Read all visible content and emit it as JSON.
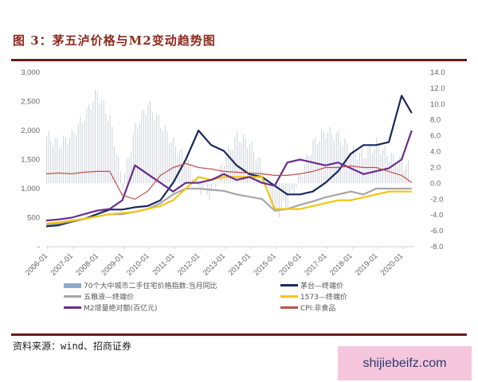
{
  "title": "图 3：茅五泸价格与M2变动趋势图",
  "source": "资料来源：wind、招商证券",
  "watermark": "shijiebeifz.com",
  "legend": [
    {
      "label": "70个大中城市二手住宅价格指数:当月同比",
      "color": "#8fa8cf",
      "kind": "bar"
    },
    {
      "label": "茅台—终端价",
      "color": "#1a2a5e",
      "kind": "line"
    },
    {
      "label": "五粮液—终端价",
      "color": "#a6a6a6",
      "kind": "line"
    },
    {
      "label": "1573—终端价",
      "color": "#f2c511",
      "kind": "line"
    },
    {
      "label": "M2增量绝对额(百亿元)",
      "color": "#6a2c91",
      "kind": "line"
    },
    {
      "label": "CPI:非食品",
      "color": "#c0504d",
      "kind": "line"
    }
  ],
  "chart_data": {
    "type": "line",
    "title": "茅五泸价格与M2变动趋势图",
    "xlabel": "",
    "ylabel_left": "",
    "ylabel_right": "",
    "x_ticks": [
      "2006-01",
      "2007-01",
      "2008-01",
      "2009-01",
      "2010-01",
      "2011-01",
      "2012-01",
      "2013-01",
      "2014-01",
      "2015-01",
      "2016-01",
      "2017-01",
      "2018-01",
      "2019-01",
      "2020-01"
    ],
    "y_left_ticks": [
      "-",
      "500",
      "1,000",
      "1,500",
      "2,000",
      "2,500",
      "3,000"
    ],
    "y_left_range": [
      0,
      3000
    ],
    "y_right_ticks": [
      "-8.0",
      "-6.0",
      "-4.0",
      "-2.0",
      "0.0",
      "2.0",
      "4.0",
      "6.0",
      "8.0",
      "10.0",
      "12.0",
      "14.0"
    ],
    "y_right_range": [
      -8,
      14
    ],
    "legend_position": "bottom",
    "grid": false,
    "x": [
      2006.0,
      2006.5,
      2007.0,
      2007.5,
      2008.0,
      2008.5,
      2009.0,
      2009.5,
      2010.0,
      2010.5,
      2011.0,
      2011.5,
      2012.0,
      2012.5,
      2013.0,
      2013.5,
      2014.0,
      2014.5,
      2015.0,
      2015.5,
      2016.0,
      2016.5,
      2017.0,
      2017.5,
      2018.0,
      2018.5,
      2019.0,
      2019.5,
      2020.0,
      2020.4
    ],
    "series": [
      {
        "name": "茅台—终端价",
        "axis": "left",
        "values": [
          350,
          370,
          430,
          480,
          560,
          640,
          640,
          680,
          700,
          800,
          1100,
          1500,
          2000,
          1750,
          1650,
          1400,
          1250,
          1200,
          1050,
          900,
          900,
          950,
          1100,
          1300,
          1600,
          1750,
          1750,
          1800,
          2600,
          2300
        ]
      },
      {
        "name": "五粮液—终端价",
        "axis": "left",
        "values": [
          380,
          400,
          440,
          480,
          520,
          560,
          560,
          600,
          650,
          750,
          900,
          1000,
          1000,
          980,
          960,
          900,
          860,
          820,
          620,
          650,
          720,
          780,
          850,
          900,
          950,
          900,
          1000,
          1000,
          1000,
          1000
        ]
      },
      {
        "name": "1573—终端价",
        "axis": "left",
        "values": [
          400,
          420,
          450,
          480,
          520,
          560,
          580,
          600,
          650,
          700,
          800,
          1000,
          1200,
          1150,
          1200,
          1200,
          1200,
          1200,
          650,
          650,
          650,
          700,
          750,
          800,
          800,
          850,
          900,
          950,
          950,
          950
        ]
      },
      {
        "name": "M2增量绝对额(百亿元)",
        "axis": "left",
        "values": [
          450,
          470,
          500,
          560,
          620,
          650,
          800,
          1400,
          1250,
          1100,
          950,
          1100,
          1100,
          1150,
          1250,
          1150,
          1200,
          1100,
          1050,
          1450,
          1500,
          1450,
          1400,
          1450,
          1350,
          1250,
          1300,
          1350,
          1500,
          2000
        ]
      },
      {
        "name": "CPI:非食品",
        "axis": "right",
        "values": [
          1.2,
          1.3,
          1.2,
          1.4,
          1.5,
          1.5,
          -1.5,
          -2.0,
          -1.0,
          1.0,
          2.0,
          2.5,
          2.0,
          1.8,
          1.5,
          1.4,
          1.3,
          1.2,
          1.0,
          1.0,
          1.2,
          1.5,
          2.0,
          2.0,
          2.2,
          2.0,
          2.0,
          1.5,
          1.0,
          0.1
        ]
      },
      {
        "name": "70个大中城市二手住宅价格指数:当月同比",
        "axis": "right",
        "kind": "bar",
        "values": [
          6.0,
          5.0,
          6.0,
          8.5,
          11.5,
          8.0,
          0.0,
          7.0,
          10.0,
          7.5,
          5.0,
          3.0,
          -0.5,
          -1.5,
          3.0,
          6.0,
          5.0,
          2.0,
          -4.0,
          -2.5,
          1.0,
          5.0,
          6.5,
          6.0,
          4.0,
          3.5,
          5.0,
          3.5,
          2.5,
          2.0
        ]
      }
    ]
  }
}
